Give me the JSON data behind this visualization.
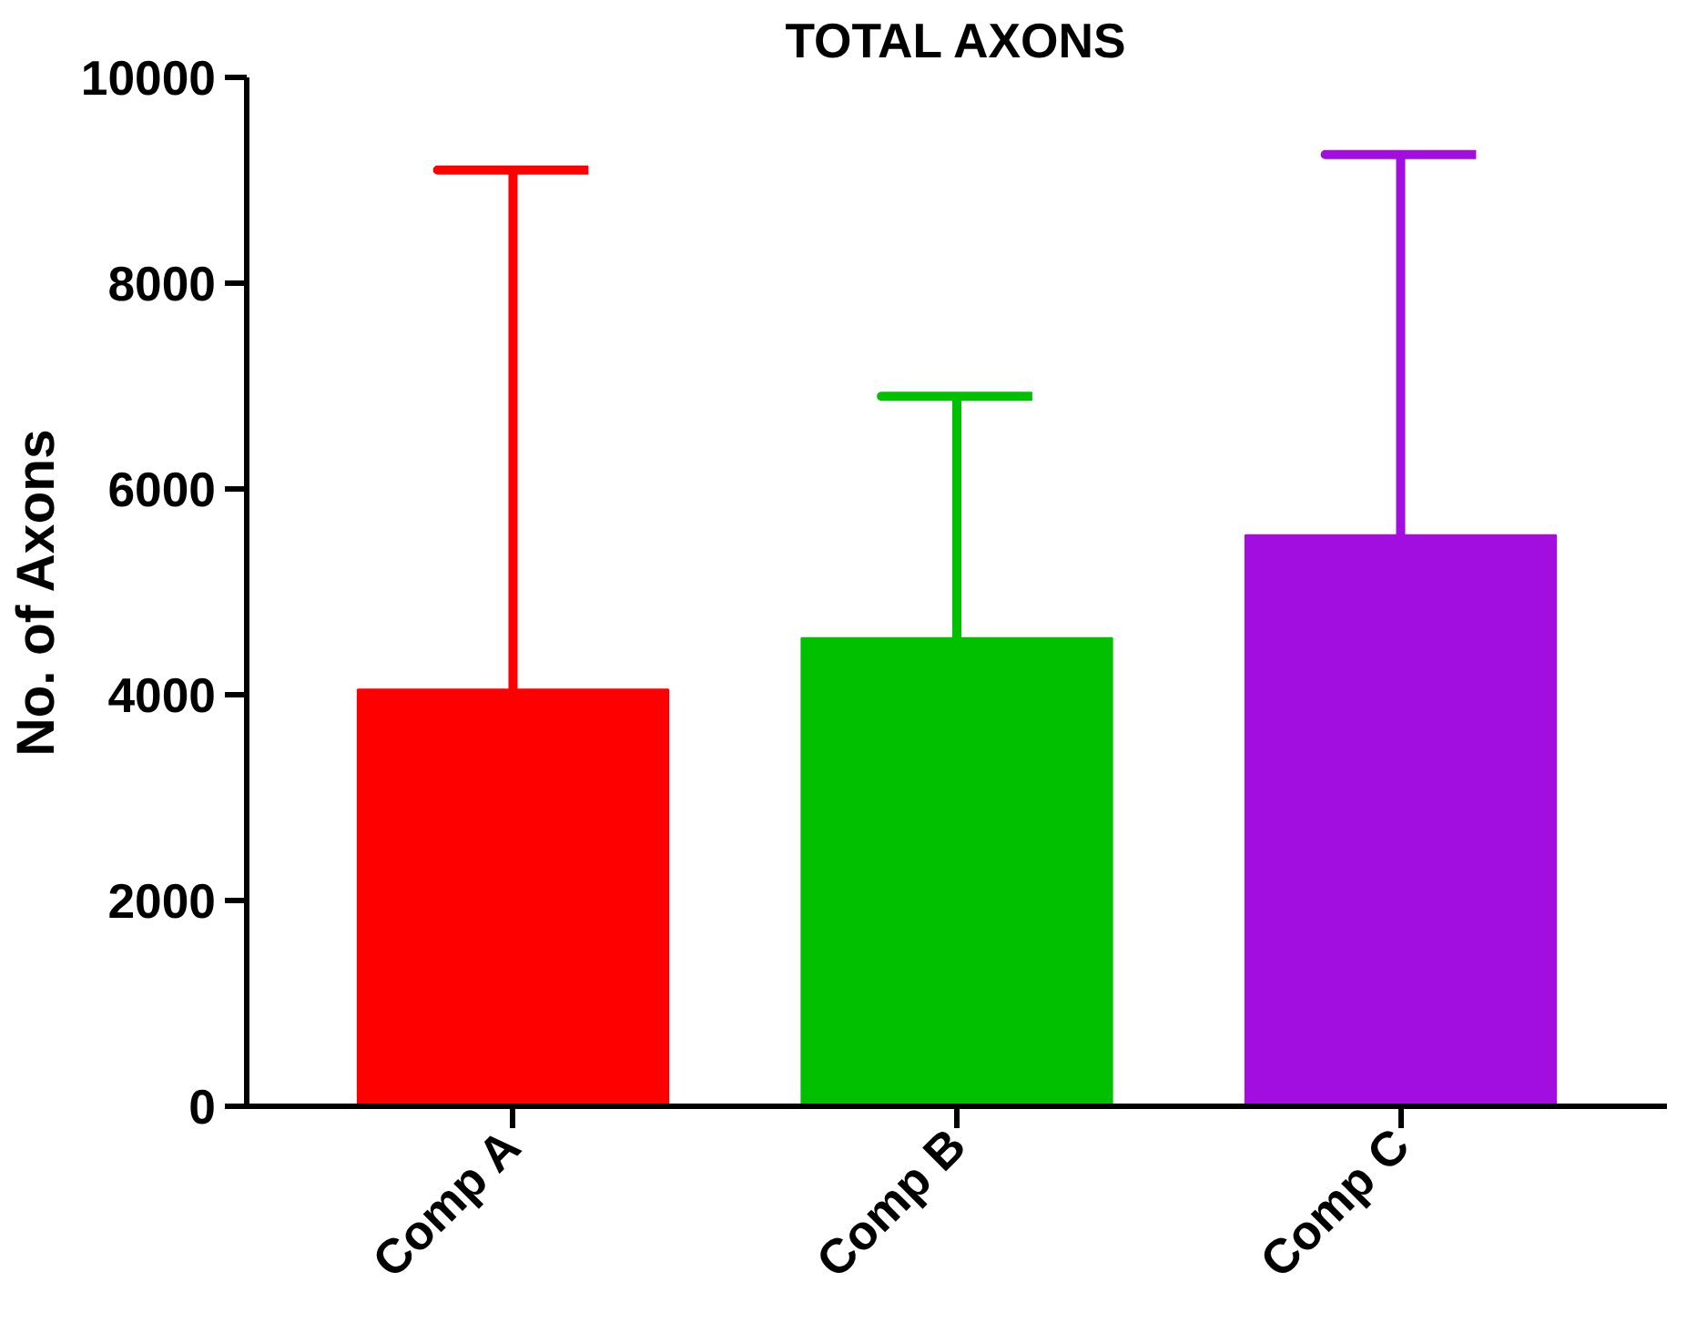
{
  "chart_data": {
    "type": "bar",
    "title": "TOTAL AXONS",
    "ylabel": "No. of Axons",
    "categories": [
      "Comp A",
      "Comp B",
      "Comp C"
    ],
    "values": [
      4050,
      4550,
      5550
    ],
    "colors": [
      "#ff0000",
      "#00c000",
      "#a20ee0"
    ],
    "errors": [
      [
        4050,
        9100
      ],
      [
        4550,
        6900
      ],
      [
        5550,
        9250
      ]
    ],
    "ylim": [
      0,
      10000
    ],
    "yticks": [
      0,
      2000,
      4000,
      6000,
      8000,
      10000
    ],
    "grid": false
  }
}
